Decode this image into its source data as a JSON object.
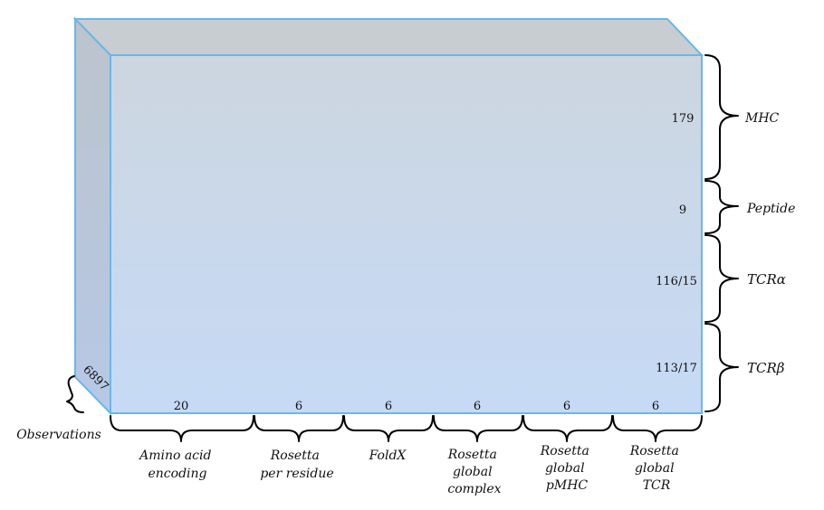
{
  "observations": {
    "count": "6897",
    "label": "Observations"
  },
  "row_groups": [
    {
      "size": "179",
      "label": "MHC"
    },
    {
      "size": "9",
      "label": "Peptide"
    },
    {
      "size": "116/15",
      "label": "TCRα"
    },
    {
      "size": "113/17",
      "label": "TCRβ"
    }
  ],
  "column_groups": [
    {
      "size": "20",
      "label_lines": [
        "Amino acid",
        "encoding"
      ]
    },
    {
      "size": "6",
      "label_lines": [
        "Rosetta",
        "per residue"
      ]
    },
    {
      "size": "6",
      "label_lines": [
        "FoldX"
      ]
    },
    {
      "size": "6",
      "label_lines": [
        "Rosetta",
        "global",
        "complex"
      ]
    },
    {
      "size": "6",
      "label_lines": [
        "Rosetta",
        "global",
        "pMHC"
      ]
    },
    {
      "size": "6",
      "label_lines": [
        "Rosetta",
        "global",
        "TCR"
      ]
    }
  ]
}
